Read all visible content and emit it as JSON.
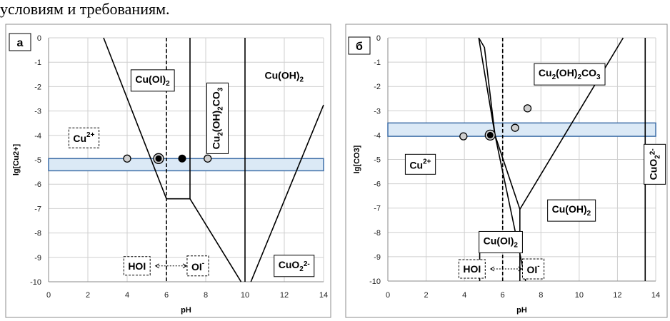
{
  "header_text": "условиям и требованиям.",
  "chart_data": [
    {
      "type": "line",
      "panel_label": "а",
      "xlabel": "pH",
      "ylabel": "lg[Cu2+]",
      "xlim": [
        0,
        14
      ],
      "ylim": [
        -10,
        0
      ],
      "x_ticks": [
        0,
        2,
        4,
        6,
        8,
        10,
        12,
        14
      ],
      "y_ticks": [
        0,
        -1,
        -2,
        -3,
        -4,
        -5,
        -6,
        -7,
        -8,
        -9,
        -10
      ],
      "grid": true,
      "band": {
        "y_from": -5.45,
        "y_to": -4.95
      },
      "boundaries": [
        {
          "x": [
            2.8,
            6.0,
            7.2,
            9.8
          ],
          "y": [
            0,
            -6.6,
            -6.6,
            -10
          ]
        },
        {
          "x": [
            7.2,
            7.2
          ],
          "y": [
            0,
            -6.6
          ]
        },
        {
          "x": [
            10.0,
            10.0
          ],
          "y": [
            0,
            -10
          ]
        },
        {
          "x": [
            10.3,
            14.0
          ],
          "y": [
            -10,
            -2.75
          ]
        }
      ],
      "dashed_line": {
        "x": 6.0
      },
      "points": [
        {
          "x": 4.0,
          "y": -4.95,
          "style": "open"
        },
        {
          "x": 5.6,
          "y": -4.95,
          "style": "ringed"
        },
        {
          "x": 6.8,
          "y": -4.95,
          "style": "filled"
        },
        {
          "x": 8.1,
          "y": -4.95,
          "style": "open"
        }
      ],
      "labels": [
        {
          "base": "Cu",
          "sup": "2+",
          "x": 1.8,
          "y": -4.1,
          "box": "dashed"
        },
        {
          "base": "Cu(OI)",
          "sub": "2",
          "x": 5.3,
          "y": -1.75,
          "box": "solid"
        },
        {
          "base": "Cu",
          "sub": "2",
          "tail": "(OH)",
          "sub2": "2",
          "tail2": "CO",
          "sub3": "3",
          "x": 8.6,
          "y": -3.3,
          "box": "solid",
          "rotate": true
        },
        {
          "base": "Cu(OH)",
          "sub": "2",
          "x": 12.0,
          "y": -1.6,
          "box": "none"
        },
        {
          "base": "HOI",
          "x": 4.5,
          "y": -9.35,
          "box": "dashed"
        },
        {
          "base": "OI",
          "sup": "-",
          "x": 7.6,
          "y": -9.35,
          "box": "dashed"
        },
        {
          "base": "CuO",
          "sub": "2",
          "sup": "2-",
          "x": 12.5,
          "y": -9.35,
          "box": "solid"
        }
      ]
    },
    {
      "type": "line",
      "panel_label": "б",
      "xlabel": "pH",
      "ylabel": "lg[CO3]",
      "xlim": [
        0,
        14
      ],
      "ylim": [
        -10,
        0
      ],
      "x_ticks": [
        0,
        2,
        4,
        6,
        8,
        10,
        12,
        14
      ],
      "y_ticks": [
        0,
        -1,
        -2,
        -3,
        -4,
        -5,
        -6,
        -7,
        -8,
        -9,
        -10
      ],
      "grid": true,
      "band": {
        "y_from": -4.05,
        "y_to": -3.5
      },
      "boundaries": [
        {
          "x": [
            4.75,
            5.6,
            7.2,
            7.2
          ],
          "y": [
            0,
            -4.0,
            -10,
            -10
          ]
        },
        {
          "x": [
            4.75,
            5.05,
            5.6,
            6.9,
            12.3
          ],
          "y": [
            0,
            -0.4,
            -4.0,
            -7.05,
            0
          ]
        },
        {
          "x": [
            4.8,
            4.8
          ],
          "y": [
            -8.1,
            -10
          ]
        },
        {
          "x": [
            6.9,
            6.9
          ],
          "y": [
            -7.05,
            -10
          ]
        },
        {
          "x": [
            13.45,
            13.45
          ],
          "y": [
            0,
            -10
          ]
        }
      ],
      "dashed_line": {
        "x": 6.0
      },
      "points": [
        {
          "x": 3.95,
          "y": -4.05,
          "style": "open"
        },
        {
          "x": 5.35,
          "y": -4.0,
          "style": "ringed"
        },
        {
          "x": 6.65,
          "y": -3.7,
          "style": "open"
        },
        {
          "x": 7.3,
          "y": -2.9,
          "style": "open"
        }
      ],
      "labels": [
        {
          "base": "Cu",
          "sub": "2",
          "tail": "(OH)",
          "sub2": "2",
          "tail2": "CO",
          "sub3": "3",
          "x": 9.5,
          "y": -1.5,
          "box": "solid"
        },
        {
          "base": "Cu",
          "sup": "2+",
          "x": 1.7,
          "y": -5.2,
          "box": "solid"
        },
        {
          "base": "Cu(OH)",
          "sub": "2",
          "x": 9.6,
          "y": -7.1,
          "box": "solid"
        },
        {
          "base": "Cu(OI)",
          "sub": "2",
          "x": 5.9,
          "y": -8.4,
          "box": "solid"
        },
        {
          "base": "HOI",
          "x": 4.4,
          "y": -9.5,
          "box": "dashed"
        },
        {
          "base": "OI",
          "sup": "-",
          "x": 7.6,
          "y": -9.5,
          "box": "dashed"
        },
        {
          "base": "CuO",
          "sub": "2",
          "sup": "2-",
          "x": 13.95,
          "y": -5.2,
          "box": "solid",
          "rotate": true
        }
      ]
    }
  ]
}
